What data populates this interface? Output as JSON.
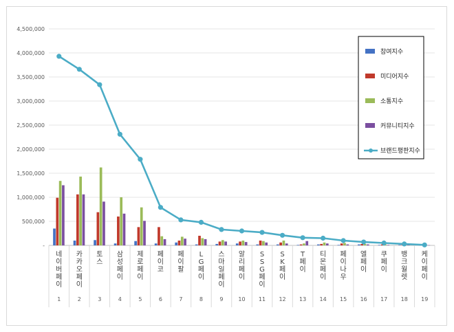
{
  "chart_data": {
    "type": "bar",
    "categories": [
      "네이버페이",
      "카카오페이",
      "토스",
      "삼성페이",
      "제로페이",
      "페이코",
      "페이팔",
      "LG페이",
      "스마일페이",
      "알리페이",
      "SSG페이",
      "SK페이",
      "T페이",
      "티몬페이",
      "페이나우",
      "엘페이",
      "쿠페이",
      "뱅크월렛",
      "케이페이"
    ],
    "index_labels": [
      "1",
      "2",
      "3",
      "4",
      "5",
      "6",
      "7",
      "8",
      "9",
      "10",
      "11",
      "12",
      "13",
      "14",
      "15",
      "16",
      "17",
      "18",
      "19"
    ],
    "y_ticks": [
      "-",
      "500,000",
      "1,000,000",
      "1,500,000",
      "2,000,000",
      "2,500,000",
      "3,000,000",
      "3,500,000",
      "4,000,000",
      "4,500,000"
    ],
    "ylim": [
      0,
      4500000
    ],
    "legend_position": "right",
    "series": [
      {
        "name": "참여지수",
        "kind": "bar",
        "color": "#4472c4",
        "values": [
          350000,
          100000,
          110000,
          40000,
          90000,
          40000,
          60000,
          20000,
          30000,
          40000,
          20000,
          20000,
          10000,
          20000,
          10000,
          20000,
          10000,
          10000,
          5000
        ]
      },
      {
        "name": "미디어지수",
        "kind": "bar",
        "color": "#c0392b",
        "values": [
          990000,
          1060000,
          690000,
          600000,
          380000,
          380000,
          100000,
          200000,
          80000,
          80000,
          100000,
          60000,
          20000,
          30000,
          40000,
          30000,
          20000,
          10000,
          5000
        ]
      },
      {
        "name": "소통지수",
        "kind": "bar",
        "color": "#9bbb59",
        "values": [
          1340000,
          1430000,
          1620000,
          1000000,
          790000,
          190000,
          180000,
          150000,
          110000,
          100000,
          90000,
          100000,
          40000,
          60000,
          50000,
          30000,
          20000,
          10000,
          5000
        ]
      },
      {
        "name": "커뮤니티지수",
        "kind": "bar",
        "color": "#7b4fa0",
        "values": [
          1250000,
          1060000,
          910000,
          660000,
          510000,
          130000,
          140000,
          130000,
          80000,
          70000,
          60000,
          40000,
          90000,
          40000,
          20000,
          20000,
          10000,
          10000,
          5000
        ]
      },
      {
        "name": "브랜드평판지수",
        "kind": "line",
        "color": "#4bacc6",
        "values": [
          3930000,
          3660000,
          3340000,
          2310000,
          1790000,
          790000,
          530000,
          480000,
          330000,
          300000,
          270000,
          210000,
          160000,
          150000,
          100000,
          70000,
          50000,
          30000,
          10000
        ]
      }
    ]
  }
}
